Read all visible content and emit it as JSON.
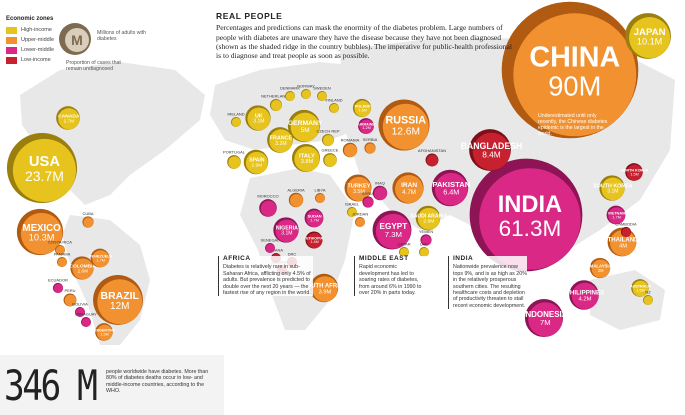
{
  "legend": {
    "title": "Economic zones",
    "zones": [
      {
        "label": "High-income",
        "color": "#e7c31d"
      },
      {
        "label": "Upper-middle",
        "color": "#f1912f"
      },
      {
        "label": "Lower-middle",
        "color": "#d92886"
      },
      {
        "label": "Low-income",
        "color": "#c7202f"
      }
    ],
    "bubble_letter": "M",
    "bubble_desc": "Millions of adults with diabetes",
    "undiag_desc": "Proportion of cases that remain undiagnosed"
  },
  "intro": {
    "heading": "REAL PEOPLE",
    "text": "Percentages and predictions can mask the enormity of the diabetes problem. Large numbers of people with diabetes are unaware they have the disease because they have not been diagnosed (shown as the shaded ridge in the country bubbles). The imperative for public-health professional is to diagnose and treat people as soon as possible."
  },
  "china_note": "Underestimated until only recently, the Chinese diabetes epidemic is the largest in the world.",
  "boxes": {
    "africa": {
      "heading": "AFRICA",
      "text": "Diabetes is relatively rare in sub-Saharan Africa, afflicting only 4.5% of adults. But prevalence is predicted to double over the next 20 years — the fastest rise of any region in the world."
    },
    "middle_east": {
      "heading": "MIDDLE EAST",
      "text": "Rapid economic development has led to soaring rates of diabetes, from around 6% in 1990 to over 20% in parts today."
    },
    "india": {
      "heading": "INDIA",
      "text": "Nationwide prevalence now tops 9%, and is as high as 20% in the relatively prosperous southern cities. The resulting healthcare costs and depletion of productivity threaten to stall recent economic development."
    }
  },
  "total": {
    "value": "346 M",
    "text": "people worldwide have diabetes. More than 80% of diabetes deaths occur in low- and middle-income countries, according to the WHO."
  },
  "chart_data": {
    "type": "bubble-map",
    "title": "REAL PEOPLE",
    "unit": "Millions of adults with diabetes",
    "series": [
      {
        "name": "USA",
        "value": "23.7M",
        "millions": 23.7,
        "zone": "high"
      },
      {
        "name": "Canada",
        "value": "2.7M",
        "millions": 2.7,
        "zone": "high"
      },
      {
        "name": "Mexico",
        "value": "10.3M",
        "millions": 10.3,
        "zone": "upper"
      },
      {
        "name": "Cuba",
        "value": "",
        "millions": 0.6,
        "zone": "upper"
      },
      {
        "name": "Costa Rica",
        "value": "",
        "millions": 0.3,
        "zone": "upper"
      },
      {
        "name": "Panama",
        "value": "",
        "millions": 0.2,
        "zone": "upper"
      },
      {
        "name": "Colombia",
        "value": "2.6M",
        "millions": 2.6,
        "zone": "upper"
      },
      {
        "name": "Venezuela",
        "value": "1.7M",
        "millions": 1.7,
        "zone": "upper"
      },
      {
        "name": "Ecuador",
        "value": "",
        "millions": 0.5,
        "zone": "lower"
      },
      {
        "name": "Peru",
        "value": "",
        "millions": 0.8,
        "zone": "upper"
      },
      {
        "name": "Bolivia",
        "value": "",
        "millions": 0.3,
        "zone": "lower"
      },
      {
        "name": "Paraguay",
        "value": "",
        "millions": 0.3,
        "zone": "lower"
      },
      {
        "name": "Argentina",
        "value": "1.5M",
        "millions": 1.5,
        "zone": "upper"
      },
      {
        "name": "Brazil",
        "value": "12M",
        "millions": 12.0,
        "zone": "upper"
      },
      {
        "name": "Ireland",
        "value": "",
        "millions": 0.2,
        "zone": "high"
      },
      {
        "name": "UK",
        "value": "3.1M",
        "millions": 3.1,
        "zone": "high"
      },
      {
        "name": "Netherlands",
        "value": "",
        "millions": 0.7,
        "zone": "high"
      },
      {
        "name": "Denmark",
        "value": "",
        "millions": 0.3,
        "zone": "high"
      },
      {
        "name": "Norway",
        "value": "",
        "millions": 0.2,
        "zone": "high"
      },
      {
        "name": "Sweden",
        "value": "",
        "millions": 0.4,
        "zone": "high"
      },
      {
        "name": "Finland",
        "value": "",
        "millions": 0.3,
        "zone": "high"
      },
      {
        "name": "Germany",
        "value": "5M",
        "millions": 5.0,
        "zone": "high"
      },
      {
        "name": "Poland",
        "value": "1.6M",
        "millions": 1.6,
        "zone": "high"
      },
      {
        "name": "France",
        "value": "3.2M",
        "millions": 3.2,
        "zone": "high"
      },
      {
        "name": "Spain",
        "value": "2.9M",
        "millions": 2.9,
        "zone": "high"
      },
      {
        "name": "Portugal",
        "value": "",
        "millions": 0.9,
        "zone": "high"
      },
      {
        "name": "Italy",
        "value": "3.8M",
        "millions": 3.8,
        "zone": "high"
      },
      {
        "name": "Czech Rep",
        "value": "",
        "millions": 0.7,
        "zone": "high"
      },
      {
        "name": "Greece",
        "value": "",
        "millions": 0.9,
        "zone": "high"
      },
      {
        "name": "Ukraine",
        "value": "1.2M",
        "millions": 1.2,
        "zone": "lower"
      },
      {
        "name": "Romania",
        "value": "",
        "millions": 1.0,
        "zone": "upper"
      },
      {
        "name": "Serbia",
        "value": "",
        "millions": 0.6,
        "zone": "upper"
      },
      {
        "name": "Russia",
        "value": "12.6M",
        "millions": 12.6,
        "zone": "upper"
      },
      {
        "name": "Turkey",
        "value": "3.5M",
        "millions": 3.5,
        "zone": "upper"
      },
      {
        "name": "Syria",
        "value": "",
        "millions": 0.6,
        "zone": "lower"
      },
      {
        "name": "Iraq",
        "value": "",
        "millions": 1.0,
        "zone": "lower"
      },
      {
        "name": "Iran",
        "value": "4.7M",
        "millions": 4.7,
        "zone": "upper"
      },
      {
        "name": "Afghanistan",
        "value": "",
        "millions": 0.8,
        "zone": "low"
      },
      {
        "name": "Pakistan",
        "value": "6.4M",
        "millions": 6.4,
        "zone": "lower"
      },
      {
        "name": "Bangladesh",
        "value": "8.4M",
        "millions": 8.4,
        "zone": "low"
      },
      {
        "name": "Israel",
        "value": "",
        "millions": 0.4,
        "zone": "high"
      },
      {
        "name": "Jordan",
        "value": "",
        "millions": 0.3,
        "zone": "upper"
      },
      {
        "name": "Egypt",
        "value": "7.3M",
        "millions": 7.3,
        "zone": "lower"
      },
      {
        "name": "Saudi Arabia",
        "value": "2.9M",
        "millions": 2.9,
        "zone": "high"
      },
      {
        "name": "Yemen",
        "value": "",
        "millions": 0.6,
        "zone": "lower"
      },
      {
        "name": "Qatar",
        "value": "",
        "millions": 0.2,
        "zone": "high"
      },
      {
        "name": "UAE",
        "value": "",
        "millions": 0.4,
        "zone": "high"
      },
      {
        "name": "Morocco",
        "value": "",
        "millions": 1.5,
        "zone": "lower"
      },
      {
        "name": "Algeria",
        "value": "",
        "millions": 1.0,
        "zone": "upper"
      },
      {
        "name": "Libya",
        "value": "",
        "millions": 0.3,
        "zone": "upper"
      },
      {
        "name": "Sudan",
        "value": "1.7M",
        "millions": 1.7,
        "zone": "lower"
      },
      {
        "name": "Nigeria",
        "value": "3.1M",
        "millions": 3.1,
        "zone": "lower"
      },
      {
        "name": "Senegal",
        "value": "",
        "millions": 0.2,
        "zone": "lower"
      },
      {
        "name": "Ghana",
        "value": "",
        "millions": 0.4,
        "zone": "low"
      },
      {
        "name": "Ethiopia",
        "value": "1.4M",
        "millions": 1.4,
        "zone": "low"
      },
      {
        "name": "DRC",
        "value": "",
        "millions": 0.5,
        "zone": "low"
      },
      {
        "name": "Zimbabwe",
        "value": "",
        "millions": 0.3,
        "zone": "low"
      },
      {
        "name": "South Africa",
        "value": "3.9M",
        "millions": 3.9,
        "zone": "upper"
      },
      {
        "name": "India",
        "value": "61.3M",
        "millions": 61.3,
        "zone": "lower"
      },
      {
        "name": "China",
        "value": "90M",
        "millions": 90.0,
        "zone": "upper"
      },
      {
        "name": "Japan",
        "value": "10.1M",
        "millions": 10.1,
        "zone": "high"
      },
      {
        "name": "North Korea",
        "value": "1.5M",
        "millions": 1.5,
        "zone": "low"
      },
      {
        "name": "South Korea",
        "value": "3.1M",
        "millions": 3.1,
        "zone": "high"
      },
      {
        "name": "Vietnam",
        "value": "1.7M",
        "millions": 1.7,
        "zone": "lower"
      },
      {
        "name": "Cambodia",
        "value": "",
        "millions": 0.5,
        "zone": "low"
      },
      {
        "name": "Thailand",
        "value": "4M",
        "millions": 4.0,
        "zone": "upper"
      },
      {
        "name": "Malaysia",
        "value": "2M",
        "millions": 2.0,
        "zone": "upper"
      },
      {
        "name": "Philippines",
        "value": "4.2M",
        "millions": 4.2,
        "zone": "lower"
      },
      {
        "name": "Indonesia",
        "value": "7M",
        "millions": 7.0,
        "zone": "lower"
      },
      {
        "name": "Australia",
        "value": "1.5M",
        "millions": 1.5,
        "zone": "high"
      },
      {
        "name": "NZ",
        "value": "",
        "millions": 0.3,
        "zone": "high"
      }
    ]
  }
}
